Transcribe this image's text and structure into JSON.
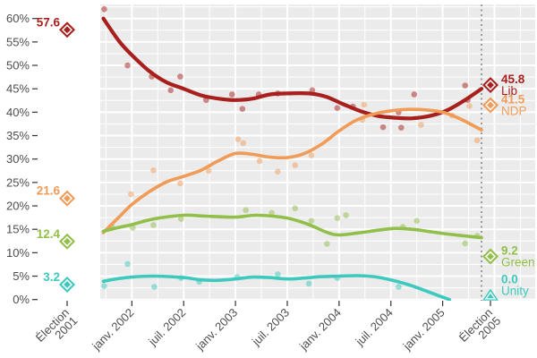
{
  "chart_data": {
    "type": "line",
    "title": "",
    "xlabel": "",
    "ylabel": "",
    "x_axis": {
      "unit": "months since Élection 2001 (May 2001)",
      "ticks": [
        {
          "t": 0,
          "label": "Élection\n2001"
        },
        {
          "t": 7.5,
          "label": "janv. 2002"
        },
        {
          "t": 13.5,
          "label": "juil. 2002"
        },
        {
          "t": 19.5,
          "label": "janv. 2003"
        },
        {
          "t": 25.5,
          "label": "juil. 2003"
        },
        {
          "t": 31.5,
          "label": "janv. 2004"
        },
        {
          "t": 37.5,
          "label": "juil. 2004"
        },
        {
          "t": 43.5,
          "label": "janv. 2005"
        },
        {
          "t": 48,
          "label": "Élection\n2005"
        }
      ],
      "election_2005_t": 48
    },
    "y_axis": {
      "tick_values": [
        0,
        5,
        10,
        15,
        20,
        25,
        30,
        35,
        40,
        45,
        50,
        55,
        60
      ],
      "tick_labels": [
        "0%",
        "5%",
        "10%",
        "15%",
        "20%",
        "25%",
        "30%",
        "35%",
        "40%",
        "45%",
        "50%",
        "55%",
        "60%"
      ],
      "minor_step": 2.5,
      "range": [
        0,
        62.5
      ]
    },
    "layout_hints": {
      "panel_background": "#EBEBEB",
      "grid": "white major every 5% / 6 months, thin white minor every 2.5% / 3 months",
      "election_line": "dotted grey vertical at Élection 2005",
      "legend": "inline colored annotations at left (2001 results) and right (2005 results)"
    },
    "series": [
      {
        "name": "Lib",
        "color": "#A8201D",
        "marker_2001": "diamond",
        "marker_2005": "diamond",
        "result_2001": 57.6,
        "result_2005": 45.8,
        "result_2001_label": "57.6",
        "result_2005_label": "45.8",
        "trend": {
          "t": [
            4.2,
            6,
            7.5,
            9.5,
            11.5,
            13.5,
            15.5,
            17.5,
            19.5,
            21.5,
            23.5,
            25.5,
            28,
            30,
            32,
            34,
            36,
            38,
            40,
            42,
            44,
            46,
            48
          ],
          "v": [
            60.0,
            55.2,
            52.2,
            48.8,
            46.4,
            45.0,
            43.6,
            42.9,
            42.6,
            42.9,
            43.8,
            44.0,
            44.0,
            43.3,
            41.7,
            40.2,
            39.2,
            38.8,
            38.7,
            39.2,
            40.4,
            42.5,
            45.0
          ]
        },
        "polls": {
          "t": [
            4.3,
            7.0,
            9.8,
            12.0,
            13.1,
            16.1,
            19.1,
            20.3,
            22.2,
            24.4,
            28.4,
            31.3,
            33.1,
            36.6,
            38.4,
            38.7,
            40.2,
            46.1,
            46.4
          ],
          "v": [
            62.0,
            50.0,
            47.6,
            44.7,
            47.6,
            42.6,
            43.8,
            40.7,
            43.8,
            44.0,
            44.7,
            40.9,
            41.2,
            36.8,
            40.0,
            36.7,
            43.8,
            45.7,
            42.6
          ]
        }
      },
      {
        "name": "NDP",
        "color": "#F09B57",
        "marker_2001": "diamond",
        "marker_2005": "diamond",
        "result_2001": 21.6,
        "result_2005": 41.5,
        "result_2001_label": "21.6",
        "result_2005_label": "41.5",
        "trend": {
          "t": [
            4.2,
            6,
            7.5,
            9.5,
            11.5,
            13.5,
            15.5,
            17.5,
            19.5,
            21.5,
            23.5,
            25.5,
            27.5,
            29.5,
            31.5,
            33.5,
            35.5,
            37.5,
            39.5,
            41.5,
            43.5,
            45.5,
            48
          ],
          "v": [
            14.3,
            17.6,
            20.3,
            23.0,
            25.1,
            26.3,
            27.6,
            29.6,
            31.2,
            31.0,
            30.4,
            30.3,
            31.2,
            33.2,
            36.0,
            38.3,
            39.6,
            40.3,
            40.6,
            40.5,
            40.0,
            38.6,
            36.2
          ]
        },
        "polls": {
          "t": [
            7.4,
            10.0,
            13.1,
            16.4,
            19.8,
            20.4,
            22.3,
            24.4,
            26.4,
            28.3,
            34.2,
            34.4,
            41.0,
            44.6,
            46.6,
            47.5
          ],
          "v": [
            22.5,
            27.6,
            24.8,
            27.5,
            34.2,
            33.4,
            29.6,
            27.3,
            28.7,
            30.8,
            38.4,
            41.6,
            37.3,
            39.3,
            41.3,
            34.0
          ]
        }
      },
      {
        "name": "Green",
        "color": "#92BE4A",
        "marker_2001": "diamond",
        "marker_2005": "diamond",
        "result_2001": 12.4,
        "result_2005": 9.2,
        "result_2001_label": "12.4",
        "result_2005_label": "9.2",
        "trend": {
          "t": [
            4.2,
            6,
            7.5,
            10,
            13.5,
            16,
            19.5,
            22,
            25.5,
            28,
            30,
            31.5,
            34,
            36,
            38,
            40,
            42,
            44,
            46,
            48
          ],
          "v": [
            14.6,
            15.4,
            16.0,
            17.2,
            18.0,
            17.8,
            17.6,
            18.0,
            17.4,
            16.0,
            14.4,
            13.8,
            14.3,
            14.8,
            15.2,
            15.0,
            14.5,
            14.0,
            13.6,
            13.2
          ]
        },
        "polls": {
          "t": [
            5.2,
            7.6,
            10.0,
            13.2,
            20.7,
            23.7,
            26.4,
            28.3,
            30.1,
            31.3,
            32.3,
            38.9,
            40.5,
            46.1,
            47.5
          ],
          "v": [
            15.5,
            15.3,
            15.9,
            17.2,
            19.1,
            18.5,
            19.5,
            16.8,
            11.9,
            17.4,
            18.0,
            15.5,
            16.8,
            12.0,
            13.6
          ]
        }
      },
      {
        "name": "Unity",
        "color": "#3EC9BE",
        "marker_2001": "diamond",
        "marker_2005": "triangle",
        "result_2001": 3.2,
        "result_2005": 0.0,
        "result_2001_label": "3.2",
        "result_2005_label": "0.0",
        "trend": {
          "t": [
            4.2,
            6,
            7.5,
            10,
            13.5,
            15.5,
            17.5,
            19.5,
            21.5,
            23.5,
            25.5,
            27.5,
            29.5,
            31.5,
            33.5,
            35.5,
            37.5,
            39.5,
            41.5,
            43.5,
            44.3
          ],
          "v": [
            3.9,
            4.5,
            4.8,
            5.0,
            4.7,
            4.2,
            4.1,
            4.4,
            4.8,
            4.7,
            4.4,
            4.6,
            4.9,
            5.0,
            5.1,
            4.9,
            4.2,
            3.2,
            1.9,
            0.5,
            0.0
          ]
        },
        "polls": {
          "t": [
            4.3,
            7.0,
            10.1,
            13.2,
            15.3,
            19.7,
            24.4,
            28.0,
            31.3,
            38.4
          ],
          "v": [
            2.9,
            7.6,
            2.7,
            4.6,
            3.8,
            4.8,
            5.4,
            3.4,
            4.6,
            2.7
          ]
        }
      }
    ]
  }
}
